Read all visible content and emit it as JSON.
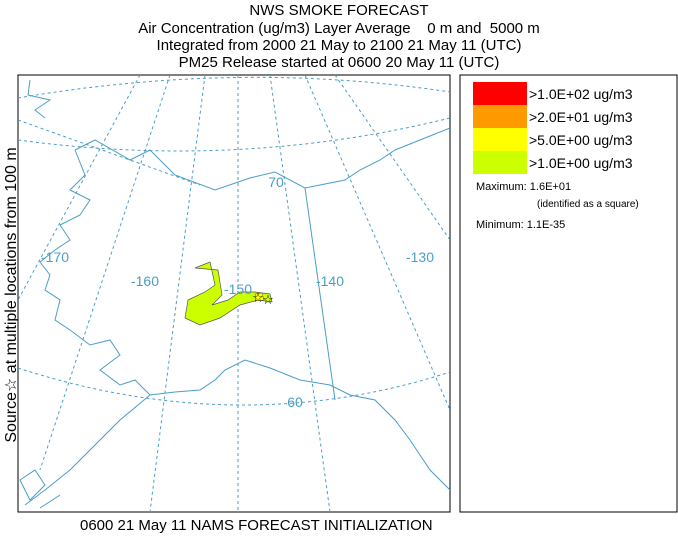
{
  "title": "NWS SMOKE FORECAST",
  "subtitle_lines": [
    "Air Concentration (ug/m3) Layer Average    0 m and  5000 m",
    "Integrated from 2000 21 May to 2100 21 May 11 (UTC)",
    "PM25 Release started at 0600 20 May 11 (UTC)"
  ],
  "source_label": "Source☆ at multiple locations from 100 m",
  "map_labels": [
    "-170",
    "-160",
    "-150",
    "-140",
    "-130",
    "70",
    "60"
  ],
  "legend": [
    {
      "label": ">1.0E+02 ug/m3",
      "color": "#ff0000"
    },
    {
      "label": ">2.0E+01 ug/m3",
      "color": "#ff9900"
    },
    {
      "label": ">5.0E+00 ug/m3",
      "color": "#ffff00"
    },
    {
      "label": ">1.0E+00 ug/m3",
      "color": "#ccff00"
    }
  ],
  "stats": {
    "maximum": "Maximum: 1.6E+01",
    "maximum_note": "(identified as a square)",
    "minimum": "Minimum: 1.1E-35"
  },
  "footer": "0600 21 May 11 NAMS FORECAST INITIALIZATION"
}
